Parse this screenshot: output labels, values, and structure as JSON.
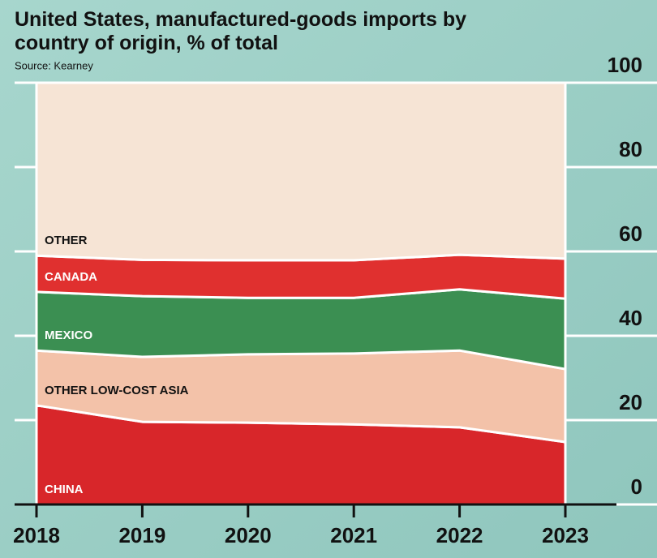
{
  "chart_data": {
    "type": "stacked-area",
    "title": "United States, manufactured-goods imports by country of origin, % of total",
    "subtitle": "Source: Kearney",
    "categories": [
      "2018",
      "2019",
      "2020",
      "2021",
      "2022",
      "2023"
    ],
    "series": [
      {
        "name": "CHINA",
        "color": "#d8262a",
        "values": [
          23.5,
          19.6,
          19.4,
          19,
          18.3,
          14.8
        ]
      },
      {
        "name": "OTHER LOW-COST ASIA",
        "color": "#f3c2a9",
        "values": [
          13,
          15.4,
          16.2,
          16.8,
          18.2,
          17.3
        ]
      },
      {
        "name": "MEXICO",
        "color": "#3b8f52",
        "values": [
          13.9,
          14.4,
          13.4,
          13.2,
          14.5,
          16.7
        ]
      },
      {
        "name": "CANADA",
        "color": "#e0302f",
        "values": [
          8.6,
          8.6,
          8.9,
          8.9,
          8.2,
          9.5
        ]
      },
      {
        "name": "OTHER",
        "color": "#f6e4d5",
        "values": [
          41,
          42,
          42.1,
          42.1,
          40.8,
          41.7
        ]
      }
    ],
    "ylim": [
      0,
      100
    ],
    "yticks": [
      0,
      20,
      40,
      60,
      80,
      100
    ],
    "grid": true
  }
}
